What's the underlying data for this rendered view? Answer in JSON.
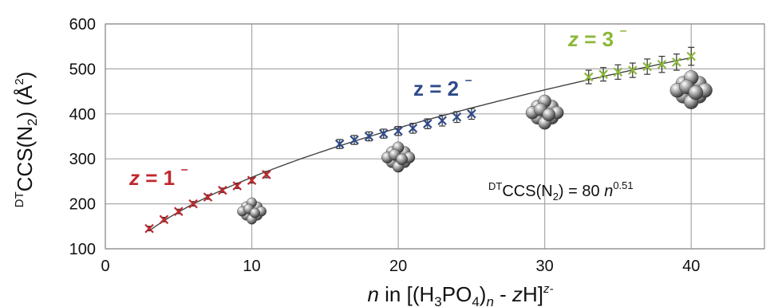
{
  "chart_data": {
    "type": "scatter",
    "xlim": [
      0,
      45
    ],
    "ylim": [
      100,
      600
    ],
    "x_ticks": [
      0,
      10,
      20,
      30,
      40
    ],
    "y_ticks": [
      100,
      200,
      300,
      400,
      500,
      600
    ],
    "x_tick_labels": [
      "0",
      "10",
      "20",
      "30",
      "40"
    ],
    "y_tick_labels": [
      "100",
      "200",
      "300",
      "400",
      "500",
      "600"
    ],
    "grid": true,
    "xlabel": {
      "n": "n",
      "in": " in [(H",
      "sub3": "3",
      "po": "PO",
      "sub4": "4",
      "close": ")",
      "subn": "n",
      "minus": " - ",
      "z": "z",
      "h": "H]",
      "sup": "z-"
    },
    "ylabel": {
      "sup": "DT",
      "main": "CCS(N",
      "sub": "2",
      "end": ") (Å",
      "sup2": "2",
      "close": ")"
    },
    "fit": {
      "coefficient": 80,
      "exponent": 0.51,
      "label": {
        "sup": "DT",
        "main": "CCS(N",
        "sub": "2",
        "eq": ") = 80 ",
        "n": "n",
        "exp": "0.51"
      }
    },
    "series": [
      {
        "name": "z = 1 ⁻",
        "color": "#c0282d",
        "x": [
          3,
          4,
          5,
          6,
          7,
          8,
          9,
          10,
          11
        ],
        "y": [
          145,
          165,
          183,
          200,
          215,
          230,
          240,
          252,
          265
        ],
        "err": [
          5,
          5,
          5,
          5,
          5,
          5,
          6,
          6,
          7
        ]
      },
      {
        "name": "z = 2 ⁻",
        "color": "#2e4a8a",
        "x": [
          16,
          17,
          18,
          19,
          20,
          21,
          22,
          23,
          24,
          25
        ],
        "y": [
          333,
          342,
          350,
          356,
          362,
          368,
          378,
          385,
          393,
          400
        ],
        "err": [
          10,
          10,
          10,
          10,
          10,
          11,
          11,
          12,
          12,
          12
        ]
      },
      {
        "name": "z = 3 ⁻",
        "color": "#8cb83a",
        "x": [
          33,
          34,
          35,
          36,
          37,
          38,
          39,
          40
        ],
        "y": [
          482,
          488,
          493,
          497,
          505,
          510,
          515,
          528
        ],
        "err": [
          15,
          15,
          16,
          16,
          17,
          18,
          18,
          20
        ]
      }
    ],
    "clusters": [
      {
        "name": "cluster-n10-icon",
        "x": 10,
        "y": 185
      },
      {
        "name": "cluster-n20-icon",
        "x": 20,
        "y": 305
      },
      {
        "name": "cluster-n30-icon",
        "x": 30,
        "y": 405
      },
      {
        "name": "cluster-n40-icon",
        "x": 40,
        "y": 455
      }
    ]
  }
}
